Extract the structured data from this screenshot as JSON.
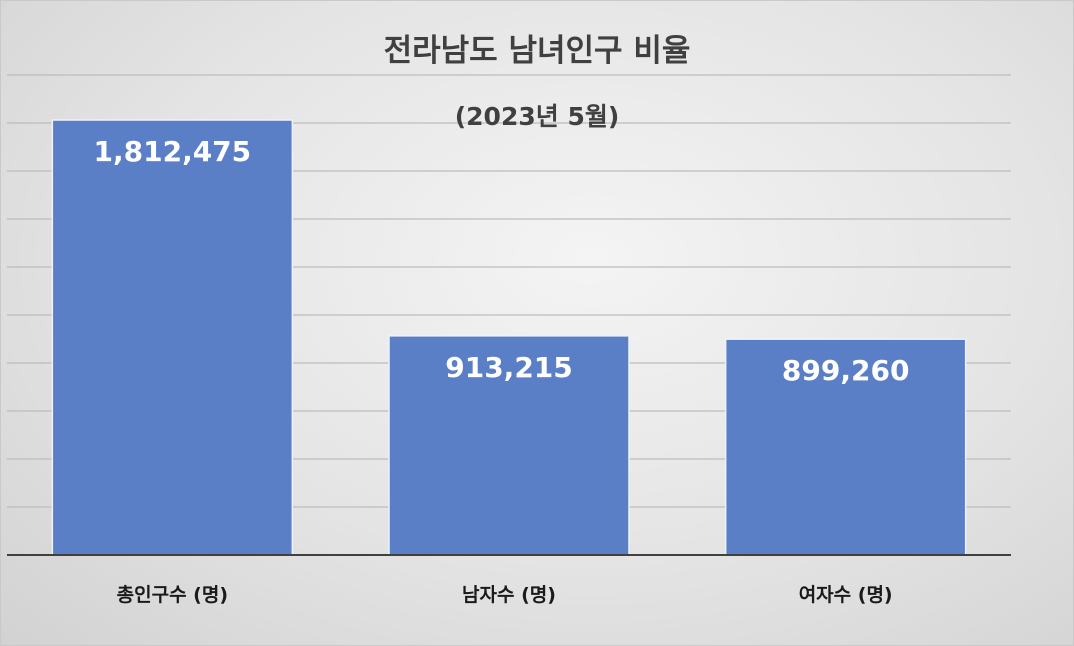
{
  "chart_data": {
    "type": "bar",
    "title": "전라남도 남녀인구 비율",
    "subtitle": "(2023년 5월)",
    "categories": [
      "총인구수 (명)",
      "남자수 (명)",
      "여자수 (명)"
    ],
    "values": [
      1812475,
      913215,
      899260
    ],
    "value_labels": [
      "1,812,475",
      "913,215",
      "899,260"
    ],
    "ylim": [
      0,
      2000000
    ],
    "grid": true,
    "legend": "none",
    "bar_color": "#5b7fc7"
  }
}
